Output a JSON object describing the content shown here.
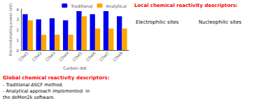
{
  "chart_data": {
    "type": "bar",
    "categories": [
      "CDot1",
      "CDot2",
      "CDot3",
      "CDot4",
      "CDot5",
      "CDot6",
      "CDot7",
      "CDot8"
    ],
    "series": [
      {
        "name": "Traditional",
        "color": "#0000EE",
        "values": [
          3.5,
          3.0,
          3.1,
          2.9,
          3.8,
          3.5,
          3.8,
          3.3
        ]
      },
      {
        "name": "Analytical",
        "color": "#FFA500",
        "values": [
          2.9,
          1.5,
          1.5,
          1.5,
          3.3,
          2.1,
          2.1,
          2.1
        ]
      }
    ],
    "xlabel": "Carbon dot",
    "ylabel": "Electrodonating power (eV)",
    "ylim": [
      0,
      4
    ],
    "yticks": [
      0,
      1,
      2,
      3,
      4
    ],
    "grid": false,
    "legend": "upper right",
    "annotations": [
      {
        "text": "Global chemical reactivity descriptors:",
        "color": "#FF0000"
      },
      {
        "text": "- Traditional ΔSCF method.",
        "color": "black"
      },
      {
        "text": "- Analytical approach implemented  in",
        "color": "black"
      },
      {
        "text": "the deMon2k software.",
        "color": "black"
      },
      {
        "text": "Local chemical reactivity descriptors:",
        "color": "#FF0000"
      },
      {
        "text": "Electrophilic sites",
        "color": "black"
      },
      {
        "text": "Nucleophilic sites",
        "color": "black"
      }
    ]
  }
}
